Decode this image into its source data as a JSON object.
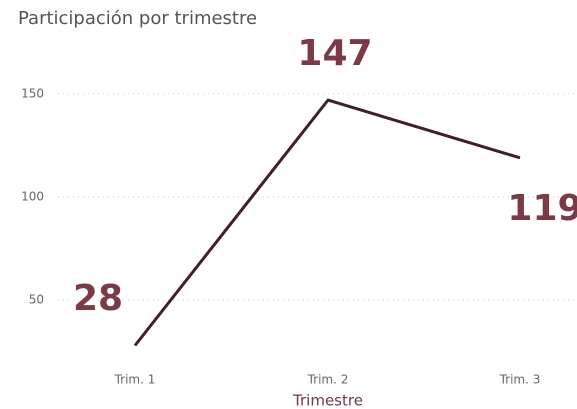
{
  "chart_data": {
    "type": "line",
    "title": "Participación por trimestre",
    "x_label": "Trimestre",
    "categories": [
      "Trim. 1",
      "Trim. 2",
      "Trim. 3"
    ],
    "values": [
      28,
      147,
      119
    ],
    "color": "#3f1f28",
    "label_color": "#7a3b47",
    "ylim": [
      20,
      165
    ],
    "yticks": [
      50,
      100,
      150
    ],
    "grid": true
  }
}
